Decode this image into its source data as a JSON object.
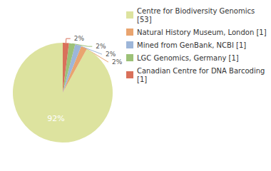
{
  "chart_data": {
    "type": "pie",
    "categories": [
      "Centre for Biodiversity Genomics [53]",
      "Natural History Museum, London [1]",
      "Mined from GenBank, NCBI [1]",
      "LGC Genomics, Germany [1]",
      "Canadian Centre for DNA Barcoding [1]"
    ],
    "values": [
      92,
      2,
      2,
      2,
      2
    ],
    "value_labels": [
      "92%",
      "2%",
      "2%",
      "2%",
      "2%"
    ],
    "colors": [
      "#dde39f",
      "#e9a46f",
      "#9db6d9",
      "#9cc177",
      "#d9705a"
    ],
    "data_labels": true,
    "legend": "right"
  }
}
